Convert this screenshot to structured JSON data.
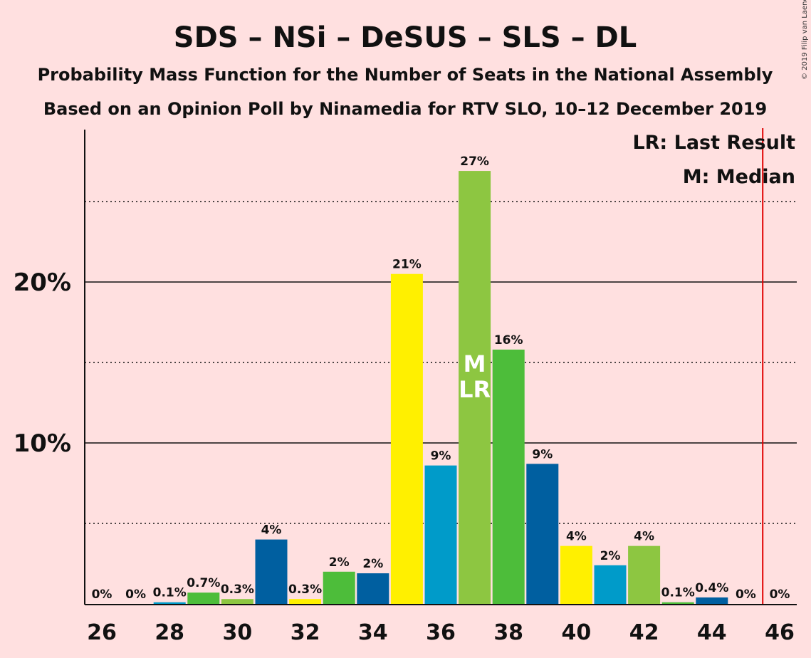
{
  "title": "SDS – NSi – DeSUS – SLS – DL",
  "subtitle1": "Probability Mass Function for the Number of Seats in the National Assembly",
  "subtitle2": "Based on an Opinion Poll by Ninamedia for RTV SLO, 10–12 December 2019",
  "copyright": "© 2019 Filip van Laenen",
  "legend": {
    "lr": "LR: Last Result",
    "m": "M: Median"
  },
  "chart_data": {
    "type": "bar",
    "x": [
      26,
      27,
      28,
      29,
      30,
      31,
      32,
      33,
      34,
      35,
      36,
      37,
      38,
      39,
      40,
      41,
      42,
      43,
      44,
      45,
      46
    ],
    "values": [
      0,
      0,
      0.1,
      0.7,
      0.3,
      4.0,
      0.3,
      2.0,
      1.9,
      20.5,
      8.6,
      26.9,
      15.8,
      8.7,
      3.6,
      2.4,
      3.6,
      0.1,
      0.4,
      0,
      0
    ],
    "labels": [
      "0%",
      "0%",
      "0.1%",
      "0.7%",
      "0.3%",
      "4%",
      "0.3%",
      "2%",
      "2%",
      "21%",
      "9%",
      "27%",
      "16%",
      "9%",
      "4%",
      "2%",
      "4%",
      "0.1%",
      "0.4%",
      "0%",
      "0%"
    ],
    "colors": [
      "#005fa0",
      "#fff000",
      "#009bc9",
      "#4dbd3a",
      "#8dc641",
      "#005fa0",
      "#fff000",
      "#4dbd3a",
      "#005fa0",
      "#fff000",
      "#009bc9",
      "#8dc641",
      "#4dbd3a",
      "#005fa0",
      "#fff000",
      "#009bc9",
      "#8dc641",
      "#4dbd3a",
      "#005fa0",
      "#fff000",
      "#009bc9"
    ],
    "xticks": [
      26,
      28,
      30,
      32,
      34,
      36,
      38,
      40,
      42,
      44,
      46
    ],
    "yticks": [
      {
        "value": 10,
        "label": "10%"
      },
      {
        "value": 20,
        "label": "20%"
      }
    ],
    "ylim": [
      0,
      29
    ],
    "median_seat": 37,
    "median_mark": "M",
    "last_result_seat": 37,
    "last_result_mark": "LR",
    "majority_line_seat": 45.5,
    "majority_line_color": "#e00000",
    "grid": "dotted minor at 5/15/25, solid major at 10/20",
    "legend_position": "top-right"
  }
}
